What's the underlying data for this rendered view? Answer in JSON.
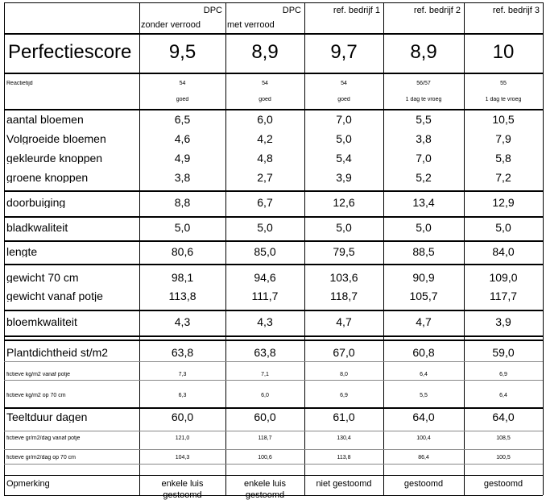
{
  "headers": [
    {
      "line1": "DPC",
      "line2": "zonder verrood"
    },
    {
      "line1": "DPC",
      "line2": "met verrood"
    },
    {
      "line1": "ref. bedrijf 1",
      "line2": ""
    },
    {
      "line1": "ref. bedrijf 2",
      "line2": ""
    },
    {
      "line1": "ref. bedrijf 3",
      "line2": ""
    }
  ],
  "perfectiescore": {
    "label": "Perfectiescore",
    "values": [
      "9,5",
      "8,9",
      "9,7",
      "8,9",
      "10"
    ]
  },
  "reactietijd": {
    "label": "Reactietijd",
    "values": [
      "54",
      "54",
      "54",
      "56/57",
      "55"
    ],
    "notes": [
      "goed",
      "goed",
      "goed",
      "1 dag te vroeg",
      "1 dag te vroeg"
    ]
  },
  "bloemen_group": [
    {
      "label": "aantal bloemen",
      "values": [
        "6,5",
        "6,0",
        "7,0",
        "5,5",
        "10,5"
      ]
    },
    {
      "label": "Volgroeide bloemen",
      "values": [
        "4,6",
        "4,2",
        "5,0",
        "3,8",
        "7,9"
      ]
    },
    {
      "label": "gekleurde knoppen",
      "values": [
        "4,9",
        "4,8",
        "5,4",
        "7,0",
        "5,8"
      ]
    },
    {
      "label": "groene knoppen",
      "values": [
        "3,8",
        "2,7",
        "3,9",
        "5,2",
        "7,2"
      ]
    }
  ],
  "doorbuiging": {
    "label": "doorbuiging",
    "values": [
      "8,8",
      "6,7",
      "12,6",
      "13,4",
      "12,9"
    ]
  },
  "bladkwaliteit": {
    "label": "bladkwaliteit",
    "values": [
      "5,0",
      "5,0",
      "5,0",
      "5,0",
      "5,0"
    ]
  },
  "lengte": {
    "label": "lengte",
    "values": [
      "80,6",
      "85,0",
      "79,5",
      "88,5",
      "84,0"
    ]
  },
  "gewicht_group": [
    {
      "label": "gewicht 70 cm",
      "values": [
        "98,1",
        "94,6",
        "103,6",
        "90,9",
        "109,0"
      ]
    },
    {
      "label": "gewicht vanaf potje",
      "values": [
        "113,8",
        "111,7",
        "118,7",
        "105,7",
        "117,7"
      ]
    }
  ],
  "bloemkwaliteit": {
    "label": "bloemkwaliteit",
    "values": [
      "4,3",
      "4,3",
      "4,7",
      "4,7",
      "3,9"
    ]
  },
  "plantdichtheid": {
    "label": "Plantdichtheid st/m2",
    "values": [
      "63,8",
      "63,8",
      "67,0",
      "60,8",
      "59,0"
    ]
  },
  "fictieve_potje": {
    "label": "fictieve kg/m2 vanaf potje",
    "values": [
      "7,3",
      "7,1",
      "8,0",
      "6,4",
      "6,9"
    ]
  },
  "fictieve_70": {
    "label": "fictieve kg/m2 op 70 cm",
    "values": [
      "6,3",
      "6,0",
      "6,9",
      "5,5",
      "6,4"
    ]
  },
  "teeltduur": {
    "label": "Teeltduur dagen",
    "values": [
      "60,0",
      "60,0",
      "61,0",
      "64,0",
      "64,0"
    ]
  },
  "fictieve_gr_potje": {
    "label": "fictieve gr/m2/dag vanaf potje",
    "values": [
      "121,0",
      "118,7",
      "130,4",
      "100,4",
      "108,5"
    ]
  },
  "fictieve_gr_70": {
    "label": "fictieve gr/m2/dag op 70 cm",
    "values": [
      "104,3",
      "100,6",
      "113,8",
      "86,4",
      "100,5"
    ]
  },
  "opmerking": {
    "label": "Opmerking",
    "values": [
      "enkele luis",
      "enkele luis",
      "niet gestoomd",
      "gestoomd",
      "gestoomd"
    ],
    "values2": [
      "gestoomd",
      "gestoomd",
      "",
      "",
      ""
    ]
  }
}
